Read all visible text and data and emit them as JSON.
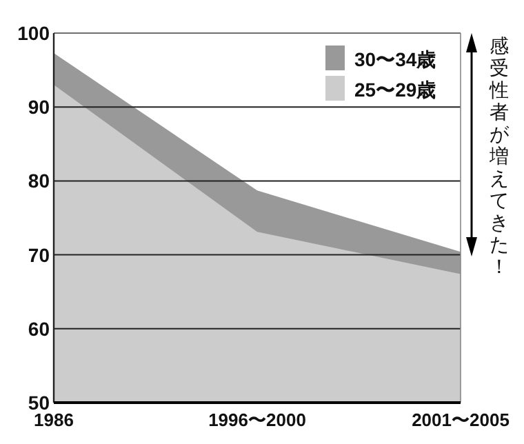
{
  "chart_data": {
    "type": "area",
    "categories": [
      "1986",
      "1996〜2000",
      "2001〜2005"
    ],
    "series": [
      {
        "name": "30〜34歳",
        "color": "#999999",
        "values": [
          97.3,
          78.7,
          70.4
        ]
      },
      {
        "name": "25〜29歳",
        "color": "#cccccc",
        "values": [
          93,
          73.1,
          67.4
        ]
      }
    ],
    "ylim": [
      50,
      100
    ],
    "yticks": [
      50,
      60,
      70,
      80,
      90,
      100
    ],
    "grid": "y",
    "legend": "top right",
    "annotations": [
      "感受性者が増えてきた！"
    ]
  }
}
